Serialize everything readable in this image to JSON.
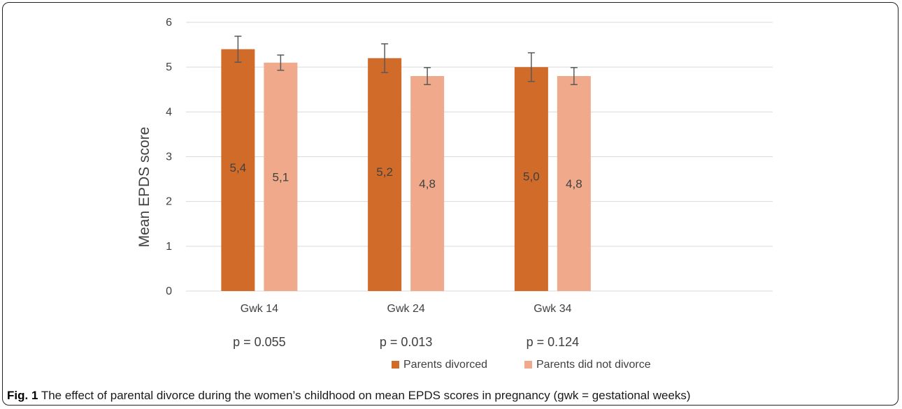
{
  "chart_data": {
    "type": "bar",
    "categories": [
      "Gwk 14",
      "Gwk 24",
      "Gwk 34"
    ],
    "series": [
      {
        "name": "Parents divorced",
        "color": "#d16b2a",
        "values": [
          5.4,
          5.2,
          5.0
        ],
        "labels": [
          "5,4",
          "5,2",
          "5,0"
        ],
        "error": [
          0.29,
          0.32,
          0.32
        ]
      },
      {
        "name": "Parents did not divorce",
        "color": "#f0a98a",
        "values": [
          5.1,
          4.8,
          4.8
        ],
        "labels": [
          "5,1",
          "4,8",
          "4,8"
        ],
        "error": [
          0.17,
          0.19,
          0.19
        ]
      }
    ],
    "p_values": [
      "p = 0.055",
      "p = 0.013",
      "p = 0.124"
    ],
    "ylabel": "Mean EPDS score",
    "xlabel": "",
    "ylim": [
      0,
      6
    ],
    "yticks": [
      0,
      1,
      2,
      3,
      4,
      5,
      6
    ],
    "grid": true,
    "legend_position": "bottom-center",
    "colors": {
      "gridline": "#d9d9d9",
      "error_bar": "#595959",
      "text": "#404040"
    }
  },
  "caption": {
    "label": "Fig. 1",
    "text": "The effect of parental divorce during the women’s childhood on mean EPDS scores in pregnancy (gwk = gestational weeks)"
  }
}
